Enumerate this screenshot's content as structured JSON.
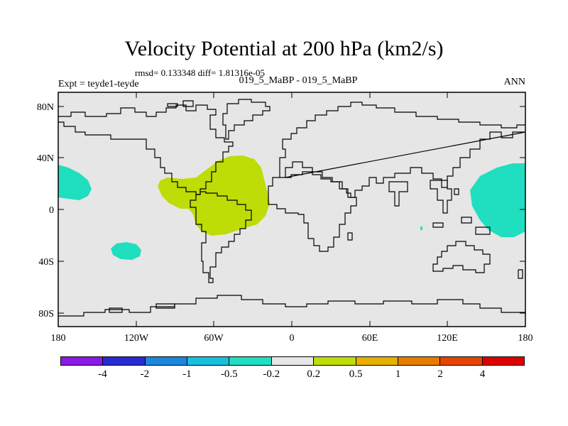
{
  "title": "Velocity Potential at 200 hPa (km2/s)",
  "stats": "rmsd= 0.133348 diff= 1.81316e-05",
  "expt": "Expt = teyde1-teyde",
  "subtitle": "019_5_MaBP - 019_5_MaBP",
  "season": "ANN",
  "lat_labels": [
    "80N",
    "40N",
    "0",
    "40S",
    "80S"
  ],
  "lon_labels": [
    "180",
    "120W",
    "60W",
    "0",
    "60E",
    "120E",
    "180"
  ],
  "colorbar": {
    "colors": [
      "#8a1be6",
      "#2a2ad6",
      "#1c86dc",
      "#18c0e0",
      "#20dec0",
      "#e6e6e6",
      "#bedc06",
      "#e6b000",
      "#e67c00",
      "#e64400",
      "#dc0000"
    ],
    "labels": [
      "-4",
      "-2",
      "-1",
      "-0.5",
      "-0.2",
      "0.2",
      "0.5",
      "1",
      "2",
      "4"
    ]
  },
  "colors": {
    "background": "#e6e6e6",
    "positive": "#bedc06",
    "negative": "#20dec0",
    "coast": "#000000"
  }
}
